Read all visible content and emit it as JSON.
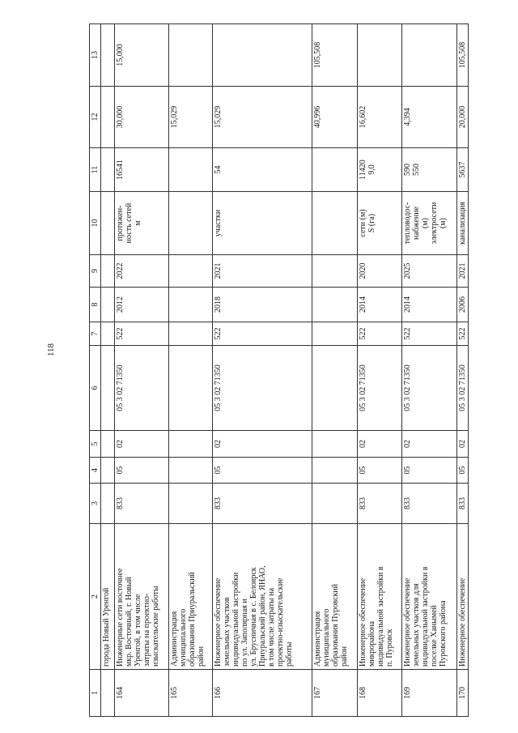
{
  "page_number": "118",
  "table": {
    "headers": [
      "1",
      "2",
      "3",
      "4",
      "5",
      "6",
      "7",
      "8",
      "9",
      "10",
      "11",
      "12",
      "13"
    ],
    "rows": [
      [
        "",
        "города Новый Уренгой",
        "",
        "",
        "",
        "",
        "",
        "",
        "",
        "",
        "",
        "",
        ""
      ],
      [
        "164",
        "Инженерные сети восточнее\nмкр. Восточный, г. Новый\nУренгой, в том числе\nзатраты на проектно-\nизыскательские работы",
        "833",
        "05",
        "02",
        "05 3 02 71350",
        "522",
        "2012",
        "2022",
        "протяжен-\nность сетей\nм",
        "16541",
        "30,000",
        "15,000"
      ],
      [
        "165",
        "Администрация\nмуниципального\nобразования Приуральский\nрайон",
        "",
        "",
        "",
        "",
        "",
        "",
        "",
        "",
        "",
        "15,029",
        ""
      ],
      [
        "166",
        "Инженерное обеспечение\nземельных участков\nиндивидуальной застройки\nпо ул. Заполярная и\nул. Брусничная в с. Белоярск\nПриуральский район, ЯНАО,\nв том числе затраты на\nпроектно-изыскательские\nработы",
        "833",
        "05",
        "02",
        "05 3 02 71350",
        "522",
        "2018",
        "2021",
        "участки",
        "54",
        "15,029",
        ""
      ],
      [
        "167",
        "Администрация\nмуниципального\nобразования Пуровский\nрайон",
        "",
        "",
        "",
        "",
        "",
        "",
        "",
        "",
        "",
        "40,996",
        "105,508"
      ],
      [
        "168",
        "Инженерное обеспечение\nмикрорайона\nиндивидуальной застройки в\nп. Пуровск",
        "833",
        "05",
        "02",
        "05 3 02 71350",
        "522",
        "2014",
        "2020",
        "сети (м)\nS (га)",
        "11420\n9,0",
        "16,602",
        ""
      ],
      [
        "169",
        "Инженерное обеспечение\nземельных участков для\nиндивидуальной застройки в\nпоселке Ханымей\nПуровского района",
        "833",
        "05",
        "02",
        "05 3 02 71350",
        "522",
        "2014",
        "2025",
        "тепловодос-\nнабжение\n(м)\nэлектросети\n(м)",
        "590\n550",
        "4,394",
        ""
      ],
      [
        "170",
        "Инженерное обеспечение",
        "833",
        "05",
        "02",
        "05 3 02 71350",
        "522",
        "2006",
        "2021",
        "канализация",
        "5637",
        "20,000",
        "105,508"
      ]
    ]
  }
}
